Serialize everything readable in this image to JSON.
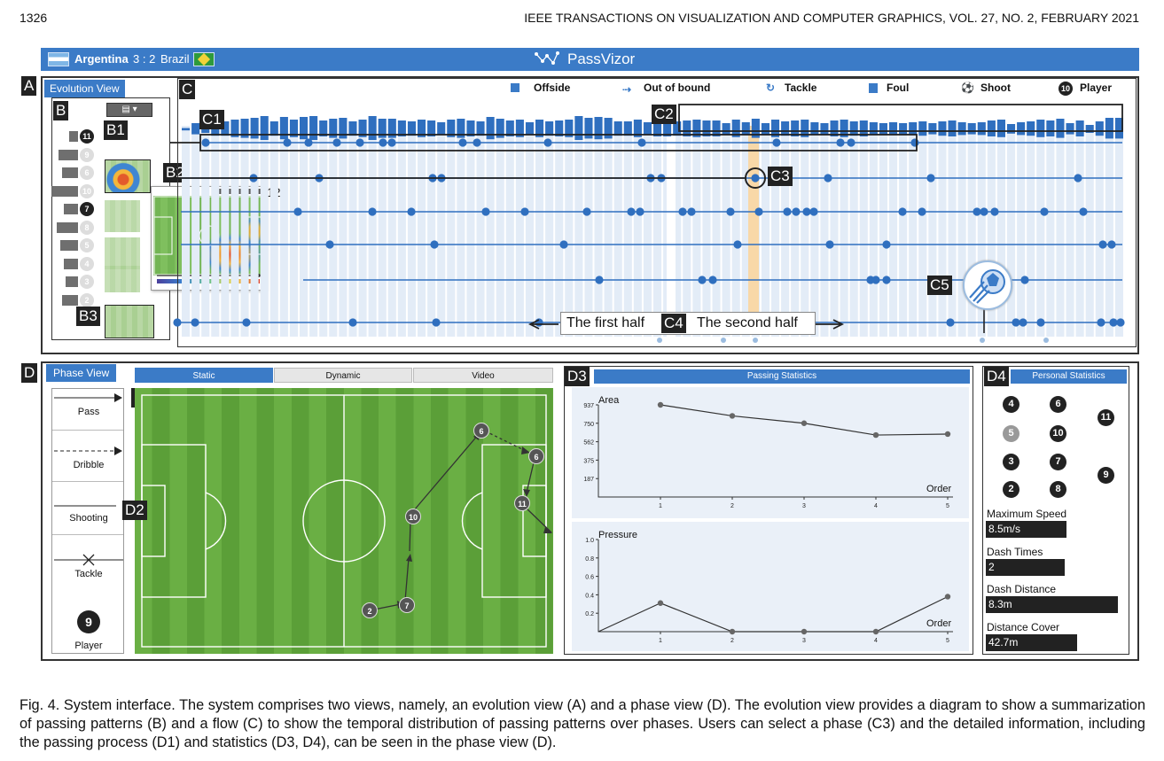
{
  "page": {
    "number": "1326",
    "journal": "IEEE TRANSACTIONS ON VISUALIZATION AND COMPUTER GRAPHICS, VOL. 27, NO. 2, FEBRUARY 2021"
  },
  "app": {
    "title": "PassVizor",
    "team_home": "Argentina",
    "score": "3 : 2",
    "team_away": "Brazil",
    "colors": {
      "accent": "#3b7bc7",
      "dot": "#2f6fbf",
      "highlight": "#f8d8a8",
      "pitch": "#5b9f38"
    }
  },
  "evolution_view": {
    "letter": "A",
    "button": "Evolution View",
    "labels": {
      "b": "B",
      "b1": "B1",
      "b2": "B2",
      "b3": "B3",
      "c": "C",
      "c1": "C1",
      "c2": "C2",
      "c3": "C3",
      "c4": "C4",
      "c5": "C5"
    },
    "legend": [
      "Offside",
      "Out of bound",
      "Tackle",
      "Foul",
      "Shoot",
      "Player"
    ],
    "legend_icons": [
      "offside-icon",
      "out-of-bound-icon",
      "tackle-icon",
      "foul-icon",
      "shoot-icon",
      "player-icon"
    ],
    "legend_player_number": "10",
    "players_b": [
      "11",
      "9",
      "6",
      "10",
      "7",
      "8",
      "5",
      "4",
      "3",
      "2"
    ],
    "zoom_number": "12",
    "first_half": "The first half",
    "second_half": "The second half"
  },
  "phase_view": {
    "letter": "D",
    "button": "Phase View",
    "labels": {
      "d1": "D1",
      "d2": "D2",
      "d3": "D3",
      "d4": "D4"
    },
    "legend": {
      "pass": "Pass",
      "dribble": "Dribble",
      "shooting": "Shooting",
      "tackle": "Tackle",
      "player": "Player",
      "player_number": "9"
    },
    "tabs": [
      "Static",
      "Dynamic",
      "Video"
    ],
    "active_tab": "Static",
    "pass_nodes": [
      "2",
      "7",
      "10",
      "6",
      "6",
      "11"
    ]
  },
  "passing_statistics": {
    "title": "Passing Statistics"
  },
  "chart_data": [
    {
      "type": "line",
      "title": "Area",
      "xlabel": "Order",
      "x": [
        1,
        2,
        3,
        4,
        5
      ],
      "values": [
        937,
        825,
        750,
        630,
        640
      ],
      "yticks": [
        "937",
        "750",
        "562",
        "375",
        "187"
      ],
      "ylim": [
        0,
        937
      ]
    },
    {
      "type": "line",
      "title": "Pressure",
      "xlabel": "Order",
      "x": [
        1,
        2,
        3,
        4,
        5
      ],
      "values": [
        0.31,
        0.0,
        0.0,
        0.0,
        0.38
      ],
      "yticks": [
        "1.0",
        "0.8",
        "0.6",
        "0.4",
        "0.2"
      ],
      "ylim": [
        0,
        1.0
      ]
    }
  ],
  "personal_statistics": {
    "title": "Personal Statistics",
    "players": [
      "4",
      "6",
      "11",
      "5",
      "10",
      "3",
      "7",
      "9",
      "2",
      "8"
    ],
    "max_speed_label": "Maximum Speed",
    "max_speed": "8.5m/s",
    "dash_times_label": "Dash Times",
    "dash_times": "2",
    "dash_distance_label": "Dash Distance",
    "dash_distance": "8.3m",
    "distance_cover_label": "Distance Cover",
    "distance_cover": "42.7m"
  },
  "caption": "Fig. 4. System interface. The system comprises two views, namely, an evolution view (A) and a phase view (D). The evolution view provides a diagram to show a summarization of passing patterns (B) and a flow (C) to show the temporal distribution of passing patterns over phases. Users can select a phase (C3) and the detailed information, including the passing process (D1) and statistics (D3, D4), can be seen in the phase view (D)."
}
